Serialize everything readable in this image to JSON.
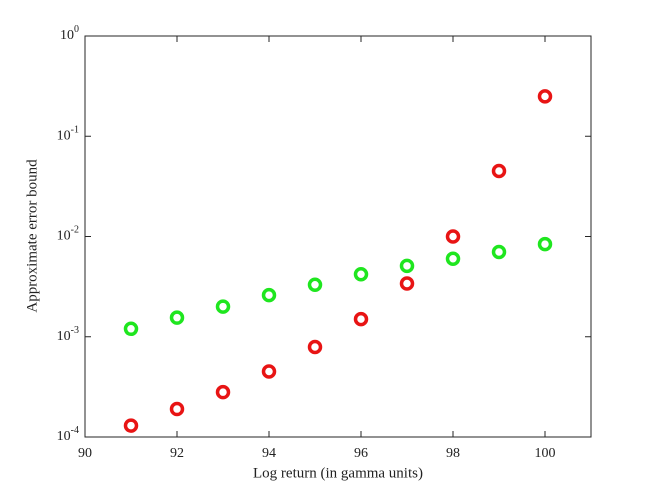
{
  "chart_data": {
    "type": "scatter",
    "xlabel": "Log return (in gamma units)",
    "ylabel": "Approximate error bound",
    "xlim": [
      90,
      101
    ],
    "xticks": [
      90,
      92,
      94,
      96,
      98,
      100
    ],
    "ylim": [
      0.0001,
      1
    ],
    "log_y": true,
    "yticks": [
      {
        "value": 0.0001,
        "label": "10^-4"
      },
      {
        "value": 0.001,
        "label": "10^-3"
      },
      {
        "value": 0.01,
        "label": "10^-2"
      },
      {
        "value": 0.1,
        "label": "10^-1"
      },
      {
        "value": 1,
        "label": "10^0"
      }
    ],
    "grid": false,
    "series": [
      {
        "color": "#e81414",
        "x": [
          91,
          92,
          93,
          94,
          95,
          96,
          97,
          98,
          99,
          100
        ],
        "values": [
          0.00013,
          0.00019,
          0.00028,
          0.00045,
          0.00079,
          0.0015,
          0.0034,
          0.01,
          0.045,
          0.25
        ]
      },
      {
        "color": "#1fe61f",
        "x": [
          91,
          92,
          93,
          94,
          95,
          96,
          97,
          98,
          99,
          100
        ],
        "values": [
          0.0012,
          0.00155,
          0.002,
          0.0026,
          0.0033,
          0.0042,
          0.0051,
          0.006,
          0.007,
          0.0084
        ]
      }
    ]
  }
}
